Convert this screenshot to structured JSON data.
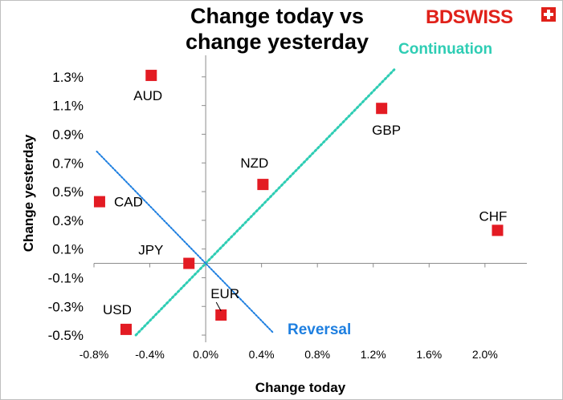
{
  "logo": {
    "bd": "BD",
    "swiss": "SWISS"
  },
  "chart_data": {
    "type": "scatter",
    "title": "Change today vs\nchange yesterday",
    "xlabel": "Change today",
    "ylabel": "Change yesterday",
    "xlim": [
      -0.8,
      2.3
    ],
    "ylim": [
      -0.55,
      1.45
    ],
    "x_ticks": [
      "-0.8%",
      "-0.4%",
      "0.0%",
      "0.4%",
      "0.8%",
      "1.2%",
      "1.6%",
      "2.0%"
    ],
    "x_tick_values": [
      -0.8,
      -0.4,
      0.0,
      0.4,
      0.8,
      1.2,
      1.6,
      2.0
    ],
    "y_ticks": [
      "1.3%",
      "1.1%",
      "0.9%",
      "0.7%",
      "0.5%",
      "0.3%",
      "0.1%",
      "-0.1%",
      "-0.3%",
      "-0.5%"
    ],
    "y_tick_values": [
      1.3,
      1.1,
      0.9,
      0.7,
      0.5,
      0.3,
      0.1,
      -0.1,
      -0.3,
      -0.5
    ],
    "marker_color": "#e31b23",
    "points": [
      {
        "label": "AUD",
        "x": -0.39,
        "y": 1.31
      },
      {
        "label": "GBP",
        "x": 1.26,
        "y": 1.08
      },
      {
        "label": "NZD",
        "x": 0.41,
        "y": 0.55
      },
      {
        "label": "CAD",
        "x": -0.76,
        "y": 0.43
      },
      {
        "label": "CHF",
        "x": 2.09,
        "y": 0.23
      },
      {
        "label": "JPY",
        "x": -0.12,
        "y": 0.0
      },
      {
        "label": "EUR",
        "x": 0.11,
        "y": -0.36
      },
      {
        "label": "USD",
        "x": -0.57,
        "y": -0.46
      }
    ],
    "trendlines": [
      {
        "name": "Continuation",
        "color": "#2ecdb4",
        "x": [
          -0.5,
          1.35
        ],
        "y": [
          -0.5,
          1.35
        ]
      },
      {
        "name": "Reversal",
        "color": "#1e7fe0",
        "x": [
          -0.78,
          0.48
        ],
        "y": [
          0.78,
          -0.48
        ]
      }
    ]
  }
}
